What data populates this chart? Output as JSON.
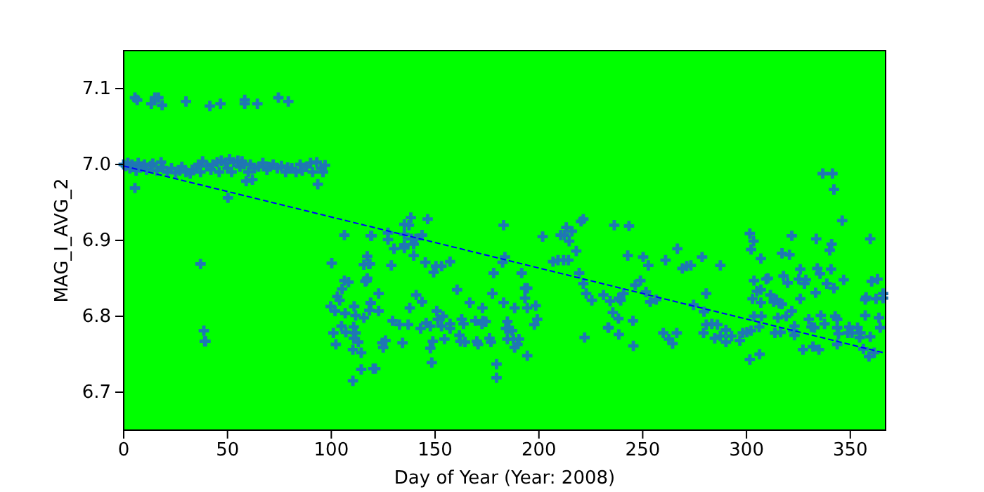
{
  "chart_data": {
    "type": "scatter",
    "xlabel": "Day of Year (Year: 2008)",
    "ylabel": "MAG_I_AVG_2",
    "xlim": [
      0,
      367
    ],
    "ylim": [
      6.65,
      7.15
    ],
    "xticks": [
      0,
      50,
      100,
      150,
      200,
      250,
      300,
      350
    ],
    "yticks": [
      6.7,
      6.8,
      6.9,
      {
        "value": 7.0,
        "label": "7.0"
      },
      7.1
    ],
    "series": [
      {
        "color": "#1f77b4",
        "marker": "cross",
        "x": [
          0,
          1,
          2,
          3,
          4,
          6,
          7,
          8,
          10,
          11,
          13,
          14,
          16,
          18,
          19,
          21,
          23,
          25,
          27,
          28,
          30,
          32,
          33,
          35,
          36,
          37,
          38,
          40,
          42,
          43,
          45,
          46,
          47,
          49,
          50,
          51,
          52,
          53,
          55,
          56,
          57,
          58,
          60,
          61,
          63,
          65,
          67,
          69,
          70,
          72,
          74,
          76,
          78,
          79,
          81,
          83,
          85,
          86,
          88,
          90,
          91,
          93,
          95,
          96,
          97,
          5.4,
          6.5,
          13.3,
          15,
          16.7,
          18.5,
          30,
          41.5,
          46.6,
          58.3,
          58.3,
          64.4,
          74.5,
          79.3,
          5.4,
          50.2,
          59,
          62,
          93.5,
          37,
          38.6,
          39,
          39.4,
          106.3,
          100.2,
          99.7,
          101.8,
          102.9,
          104,
          105.2,
          106.3,
          108.3,
          106.7,
          104.9,
          101,
          102.2,
          107,
          111,
          111.7,
          110.8,
          111.7,
          110.8,
          113,
          110.4,
          114.4,
          114.4,
          110.4,
          115.7,
          116.4,
          117.3,
          115.7,
          117.3,
          118.6,
          119,
          119,
          118.4,
          120.2,
          118,
          119.4,
          117,
          118.9,
          118.3,
          122.8,
          122.8,
          121.2,
          124.6,
          126.1,
          125,
          127.3,
          127.3,
          128.9,
          130.2,
          129.5,
          132.9,
          134.3,
          137,
          135.2,
          137.4,
          138.3,
          135.2,
          138.6,
          135.2,
          135.2,
          139.7,
          139.7,
          140.8,
          143.7,
          146.4,
          145.3,
          140.9,
          137.8,
          143.7,
          143,
          145.7,
          147.7,
          147.7,
          148.9,
          148.4,
          149.3,
          150.4,
          153.1,
          150.8,
          151.3,
          153.1,
          153.8,
          154.5,
          157.2,
          157.2,
          157.2,
          160.6,
          161.7,
          162.8,
          163.7,
          162.2,
          164.4,
          166.7,
          169.4,
          170.1,
          170.7,
          172.8,
          173,
          172.6,
          174.4,
          176.2,
          176.9,
          177.6,
          178.2,
          179.6,
          179.6,
          183,
          183,
          184.8,
          184.1,
          185.5,
          187.1,
          184.8,
          182.5,
          183.6,
          188.3,
          188.3,
          189.7,
          190.4,
          187.7,
          191.7,
          193.3,
          194.4,
          193.3,
          194.4,
          198.5,
          199.2,
          197.8,
          194.4,
          201.8,
          206.8,
          209.2,
          211.9,
          214.2,
          210.5,
          212.3,
          213.2,
          215.9,
          214.6,
          218,
          220.3,
          221.4,
          219.4,
          221.4,
          222.8,
          225.5,
          231.1,
          234.3,
          236.3,
          235.6,
          238.3,
          233.6,
          238.5,
          222,
          239.4,
          243.4,
          242.8,
          233.3,
          238.5,
          240.8,
          245.3,
          245.5,
          246.4,
          248.9,
          250.2,
          252.7,
          251.6,
          253.6,
          256.5,
          259.9,
          262.6,
          264.4,
          266.4,
          261,
          266.7,
          269.1,
          271.2,
          273.2,
          274.5,
          278.6,
          280.6,
          279.5,
          279.3,
          280.6,
          283.3,
          286,
          284.7,
          287.4,
          287.4,
          290.1,
          290.1,
          292.8,
          296.8,
          298.2,
          300.2,
          302.2,
          301.6,
          303.4,
          302.2,
          306.9,
          303.6,
          305,
          306.9,
          306.9,
          302.9,
          309.5,
          310.3,
          303.6,
          307.2,
          306.1,
          301.6,
          306.3,
          311.5,
          313.1,
          314.4,
          315.8,
          317.1,
          315.1,
          313.7,
          316.4,
          319.1,
          317.8,
          319.8,
          317.1,
          320.7,
          321.8,
          321.8,
          322.5,
          323.1,
          323.1,
          325.2,
          325.9,
          325.9,
          327.2,
          327.9,
          328.6,
          330,
          331.3,
          332,
          332.7,
          333.3,
          333.6,
          334.9,
          336.7,
          341.4,
          342.1,
          334.1,
          335.4,
          335.8,
          337.6,
          338.7,
          340.1,
          341,
          340.7,
          342.1,
          342.7,
          343.7,
          343.7,
          344.3,
          343.7,
          346.8,
          346.1,
          349.5,
          348.8,
          350.8,
          353.5,
          354.9,
          354.5,
          356.3,
          357.2,
          357.2,
          357.6,
          359.6,
          360.3,
          359.6,
          359,
          361.5,
          363.1,
          362.4,
          363.8,
          364.4,
          365.8,
          365.8
        ],
        "values": [
          7.0,
          6.998,
          7.002,
          6.995,
          7.0,
          6.992,
          7.002,
          6.996,
          7.0,
          6.993,
          6.998,
          7.001,
          6.992,
          7.003,
          6.996,
          6.99,
          6.995,
          6.989,
          6.992,
          6.997,
          6.99,
          6.988,
          6.993,
          6.995,
          7.0,
          6.99,
          7.004,
          6.998,
          6.993,
          7.0,
          7.003,
          6.99,
          7.005,
          7.002,
          6.995,
          7.007,
          6.99,
          7.003,
          7.005,
          6.997,
          7.004,
          7.0,
          6.99,
          7.0,
          6.995,
          6.997,
          7.002,
          6.993,
          6.997,
          7.0,
          6.995,
          6.998,
          6.99,
          6.996,
          6.995,
          6.99,
          7.0,
          6.992,
          6.997,
          7.002,
          6.99,
          7.003,
          6.995,
          6.99,
          6.999,
          7.088,
          7.085,
          7.08,
          7.088,
          7.088,
          7.078,
          7.083,
          7.077,
          7.08,
          7.085,
          7.08,
          7.08,
          7.088,
          7.083,
          6.969,
          6.956,
          6.978,
          6.98,
          6.974,
          6.869,
          6.781,
          6.767,
          6.767,
          6.907,
          6.87,
          6.813,
          6.807,
          6.826,
          6.821,
          6.836,
          6.847,
          6.845,
          6.804,
          6.787,
          6.778,
          6.763,
          6.779,
          6.813,
          6.801,
          6.786,
          6.778,
          6.771,
          6.766,
          6.756,
          6.752,
          6.73,
          6.715,
          6.798,
          6.846,
          6.85,
          6.868,
          6.879,
          6.869,
          6.906,
          6.817,
          6.808,
          6.731,
          6.869,
          6.906,
          6.847,
          6.818,
          6.808,
          6.83,
          6.807,
          6.731,
          6.765,
          6.768,
          6.759,
          6.901,
          6.91,
          6.867,
          6.889,
          6.794,
          6.789,
          6.765,
          6.789,
          6.921,
          6.92,
          6.93,
          6.908,
          6.902,
          6.894,
          6.89,
          6.895,
          6.88,
          6.902,
          6.907,
          6.928,
          6.871,
          6.828,
          6.811,
          6.819,
          6.784,
          6.791,
          6.787,
          6.758,
          6.767,
          6.739,
          6.858,
          6.866,
          6.866,
          6.807,
          6.796,
          6.787,
          6.8,
          6.77,
          6.872,
          6.79,
          6.784,
          6.835,
          6.775,
          6.796,
          6.79,
          6.767,
          6.766,
          6.818,
          6.794,
          6.767,
          6.763,
          6.811,
          6.794,
          6.79,
          6.793,
          6.771,
          6.766,
          6.83,
          6.857,
          6.737,
          6.719,
          6.92,
          6.818,
          6.793,
          6.784,
          6.784,
          6.781,
          6.77,
          6.871,
          6.878,
          6.811,
          6.759,
          6.763,
          6.77,
          6.77,
          6.857,
          6.837,
          6.837,
          6.824,
          6.811,
          6.814,
          6.796,
          6.789,
          6.748,
          6.905,
          6.872,
          6.874,
          6.874,
          6.874,
          6.907,
          6.907,
          6.917,
          6.912,
          6.899,
          6.886,
          6.925,
          6.928,
          6.857,
          6.843,
          6.83,
          6.821,
          6.828,
          6.82,
          6.92,
          6.805,
          6.797,
          6.785,
          6.776,
          6.772,
          6.821,
          6.919,
          6.88,
          6.785,
          6.824,
          6.83,
          6.794,
          6.761,
          6.841,
          6.847,
          6.878,
          6.867,
          6.832,
          6.819,
          6.822,
          6.778,
          6.77,
          6.764,
          6.778,
          6.874,
          6.889,
          6.863,
          6.866,
          6.867,
          6.815,
          6.878,
          6.83,
          6.806,
          6.778,
          6.789,
          6.79,
          6.789,
          6.771,
          6.867,
          6.774,
          6.782,
          6.766,
          6.774,
          6.768,
          6.778,
          6.779,
          6.781,
          6.909,
          6.899,
          6.888,
          6.876,
          6.847,
          6.833,
          6.835,
          6.818,
          6.823,
          6.849,
          6.85,
          6.8,
          6.8,
          6.786,
          6.743,
          6.75,
          6.828,
          6.819,
          6.822,
          6.817,
          6.816,
          6.798,
          6.778,
          6.779,
          6.8,
          6.853,
          6.844,
          6.883,
          6.881,
          6.906,
          6.807,
          6.781,
          6.787,
          6.775,
          6.849,
          6.862,
          6.823,
          6.756,
          6.843,
          6.848,
          6.796,
          6.786,
          6.76,
          6.785,
          6.831,
          6.902,
          6.756,
          6.988,
          6.988,
          6.967,
          6.863,
          6.856,
          6.801,
          6.79,
          6.843,
          6.887,
          6.895,
          6.862,
          6.837,
          6.8,
          6.796,
          6.785,
          6.777,
          6.763,
          6.848,
          6.926,
          6.786,
          6.778,
          6.778,
          6.785,
          6.778,
          6.772,
          6.757,
          6.801,
          6.822,
          6.825,
          6.902,
          6.846,
          6.773,
          6.747,
          6.752,
          6.849,
          6.823,
          6.798,
          6.785,
          6.83,
          6.824
        ]
      },
      {
        "type": "line",
        "color": "#0000ff",
        "line_style": "dashed",
        "x": [
          0,
          366
        ],
        "values": [
          6.998,
          6.752
        ]
      }
    ]
  }
}
